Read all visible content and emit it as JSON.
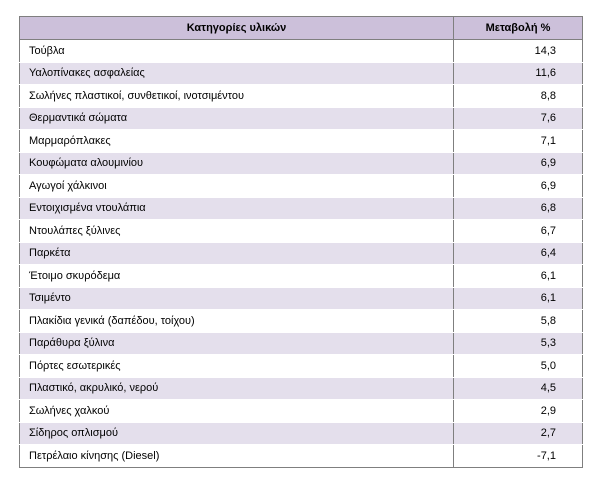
{
  "table": {
    "headers": {
      "category": "Κατηγορίες υλικών",
      "change": "Μεταβολή %"
    },
    "rows": [
      {
        "category": "Τούβλα",
        "change": "14,3"
      },
      {
        "category": "Υαλοπίνακες ασφαλείας",
        "change": "11,6"
      },
      {
        "category": "Σωλήνες πλαστικοί, συνθετικοί, ινοτσιμέντου",
        "change": "8,8"
      },
      {
        "category": "Θερμαντικά σώματα",
        "change": "7,6"
      },
      {
        "category": "Μαρμαρόπλακες",
        "change": "7,1"
      },
      {
        "category": "Κουφώματα αλουμινίου",
        "change": "6,9"
      },
      {
        "category": "Αγωγοί χάλκινοι",
        "change": "6,9"
      },
      {
        "category": "Εντοιχισμένα ντουλάπια",
        "change": "6,8"
      },
      {
        "category": "Ντουλάπες ξύλινες",
        "change": "6,7"
      },
      {
        "category": "Παρκέτα",
        "change": "6,4"
      },
      {
        "category": "Έτοιμο σκυρόδεμα",
        "change": "6,1"
      },
      {
        "category": "Τσιμέντο",
        "change": "6,1"
      },
      {
        "category": "Πλακίδια γενικά (δαπέδου, τοίχου)",
        "change": "5,8"
      },
      {
        "category": "Παράθυρα ξύλινα",
        "change": "5,3"
      },
      {
        "category": "Πόρτες εσωτερικές",
        "change": "5,0"
      },
      {
        "category": "Πλαστικό, ακρυλικό, νερού",
        "change": "4,5"
      },
      {
        "category": "Σωλήνες χαλκού",
        "change": "2,9"
      },
      {
        "category": "Σίδηρος οπλισμού",
        "change": "2,7"
      },
      {
        "category": "Πετρέλαιο κίνησης (Diesel)",
        "change": "-7,1"
      }
    ]
  },
  "colors": {
    "header_bg": "#ccc0da",
    "stripe_bg": "#e4dfec",
    "border": "#7f7f7f"
  }
}
